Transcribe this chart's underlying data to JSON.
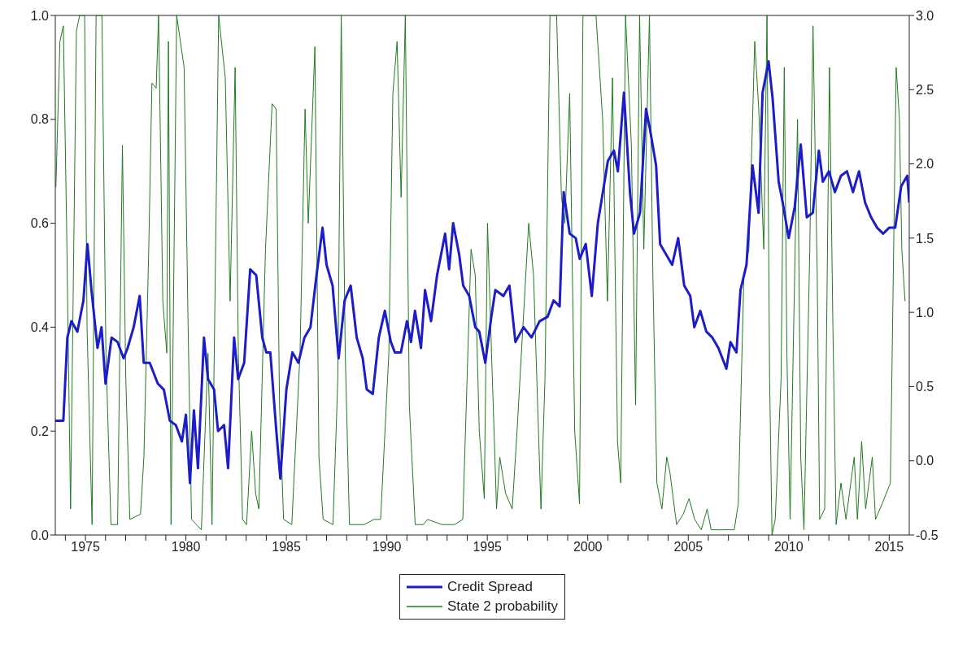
{
  "chart_data": {
    "type": "line",
    "xlim": [
      1973.5,
      2016.0
    ],
    "xticks": [
      {
        "value": 1974,
        "label": null
      },
      1975,
      {
        "value": 1976,
        "label": null
      },
      {
        "value": 1977,
        "label": null
      },
      {
        "value": 1978,
        "label": null
      },
      {
        "value": 1979,
        "label": null
      },
      1980,
      {
        "value": 1981,
        "label": null
      },
      {
        "value": 1982,
        "label": null
      },
      {
        "value": 1983,
        "label": null
      },
      {
        "value": 1984,
        "label": null
      },
      1985,
      {
        "value": 1986,
        "label": null
      },
      {
        "value": 1987,
        "label": null
      },
      {
        "value": 1988,
        "label": null
      },
      {
        "value": 1989,
        "label": null
      },
      1990,
      {
        "value": 1991,
        "label": null
      },
      {
        "value": 1992,
        "label": null
      },
      {
        "value": 1993,
        "label": null
      },
      {
        "value": 1994,
        "label": null
      },
      1995,
      {
        "value": 1996,
        "label": null
      },
      {
        "value": 1997,
        "label": null
      },
      {
        "value": 1998,
        "label": null
      },
      {
        "value": 1999,
        "label": null
      },
      2000,
      {
        "value": 2001,
        "label": null
      },
      {
        "value": 2002,
        "label": null
      },
      {
        "value": 2003,
        "label": null
      },
      {
        "value": 2004,
        "label": null
      },
      2005,
      {
        "value": 2006,
        "label": null
      },
      {
        "value": 2007,
        "label": null
      },
      {
        "value": 2008,
        "label": null
      },
      {
        "value": 2009,
        "label": null
      },
      2010,
      {
        "value": 2011,
        "label": null
      },
      {
        "value": 2012,
        "label": null
      },
      {
        "value": 2013,
        "label": null
      },
      {
        "value": 2014,
        "label": null
      },
      2015
    ],
    "ylim": [
      0,
      1
    ],
    "yticks": [
      {
        "value": 0,
        "label": "0.0"
      },
      {
        "value": 0.2,
        "label": "0.2"
      },
      {
        "value": 0.4,
        "label": "0.4"
      },
      {
        "value": 0.6,
        "label": "0.6"
      },
      {
        "value": 0.8,
        "label": "0.8"
      },
      {
        "value": 1,
        "label": "1.0"
      }
    ],
    "y2lim": [
      -0.5,
      3.0
    ],
    "y2ticks": [
      {
        "value": -0.5,
        "label": "-0.5"
      },
      {
        "value": 0,
        "label": "0.0"
      },
      {
        "value": 0.5,
        "label": "0.5"
      },
      {
        "value": 1,
        "label": "1.0"
      },
      {
        "value": 1.5,
        "label": "1.5"
      },
      {
        "value": 2,
        "label": "2.0"
      },
      {
        "value": 2.5,
        "label": "2.5"
      },
      {
        "value": 3,
        "label": "3.0"
      }
    ],
    "legend": "bottom",
    "marker": "none",
    "series": [
      {
        "name": "Credit Spread",
        "color": "#1c1cc8",
        "axis": "y2",
        "x": [
          1973.5,
          1973.9,
          1974.1,
          1974.3,
          1974.6,
          1974.9,
          1975.1,
          1975.3,
          1975.6,
          1975.8,
          1976.0,
          1976.3,
          1976.6,
          1976.9,
          1977.1,
          1977.4,
          1977.7,
          1977.9,
          1978.2,
          1978.6,
          1978.9,
          1979.2,
          1979.5,
          1979.8,
          1980.0,
          1980.2,
          1980.4,
          1980.6,
          1980.9,
          1981.1,
          1981.4,
          1981.6,
          1981.9,
          1982.1,
          1982.4,
          1982.6,
          1982.9,
          1983.2,
          1983.5,
          1983.8,
          1984.0,
          1984.2,
          1984.5,
          1984.7,
          1985.0,
          1985.3,
          1985.6,
          1985.9,
          1986.2,
          1986.5,
          1986.8,
          1987.0,
          1987.3,
          1987.6,
          1987.9,
          1988.2,
          1988.5,
          1988.8,
          1989.0,
          1989.3,
          1989.6,
          1989.9,
          1990.2,
          1990.4,
          1990.7,
          1991.0,
          1991.2,
          1991.4,
          1991.7,
          1991.9,
          1992.2,
          1992.5,
          1992.9,
          1993.1,
          1993.3,
          1993.6,
          1993.8,
          1994.1,
          1994.4,
          1994.6,
          1994.9,
          1995.2,
          1995.4,
          1995.8,
          1996.1,
          1996.4,
          1996.8,
          1997.2,
          1997.6,
          1998.0,
          1998.3,
          1998.6,
          1998.8,
          1999.1,
          1999.4,
          1999.6,
          1999.9,
          2000.2,
          2000.5,
          2000.8,
          2001.0,
          2001.3,
          2001.5,
          2001.8,
          2002.1,
          2002.3,
          2002.6,
          2002.9,
          2003.1,
          2003.4,
          2003.6,
          2003.9,
          2004.2,
          2004.5,
          2004.8,
          2005.1,
          2005.3,
          2005.6,
          2005.9,
          2006.2,
          2006.5,
          2006.9,
          2007.1,
          2007.4,
          2007.6,
          2007.9,
          2008.2,
          2008.5,
          2008.7,
          2009.0,
          2009.2,
          2009.5,
          2009.7,
          2010.0,
          2010.3,
          2010.6,
          2010.9,
          2011.2,
          2011.5,
          2011.7,
          2012.0,
          2012.3,
          2012.6,
          2012.9,
          2013.2,
          2013.5,
          2013.8,
          2014.1,
          2014.4,
          2014.7,
          2015.0,
          2015.3,
          2015.6,
          2015.9,
          2016.0
        ],
        "values": [
          0.27,
          0.27,
          0.83,
          0.94,
          0.87,
          1.08,
          1.46,
          1.15,
          0.76,
          0.9,
          0.52,
          0.83,
          0.8,
          0.69,
          0.76,
          0.9,
          1.11,
          0.66,
          0.66,
          0.52,
          0.48,
          0.27,
          0.24,
          0.13,
          0.31,
          -0.15,
          0.34,
          -0.05,
          0.83,
          0.55,
          0.48,
          0.2,
          0.24,
          -0.05,
          0.83,
          0.55,
          0.66,
          1.29,
          1.25,
          0.83,
          0.73,
          0.73,
          0.2,
          -0.12,
          0.48,
          0.73,
          0.66,
          0.83,
          0.9,
          1.25,
          1.57,
          1.32,
          1.18,
          0.69,
          1.08,
          1.18,
          0.83,
          0.69,
          0.48,
          0.45,
          0.83,
          1.01,
          0.8,
          0.73,
          0.73,
          0.94,
          0.8,
          1.01,
          0.76,
          1.15,
          0.94,
          1.25,
          1.53,
          1.29,
          1.6,
          1.39,
          1.18,
          1.11,
          0.9,
          0.87,
          0.66,
          0.97,
          1.15,
          1.11,
          1.18,
          0.8,
          0.9,
          0.83,
          0.94,
          0.97,
          1.08,
          1.04,
          1.81,
          1.53,
          1.5,
          1.36,
          1.46,
          1.11,
          1.6,
          1.85,
          2.02,
          2.09,
          1.95,
          2.48,
          1.81,
          1.53,
          1.67,
          2.37,
          2.23,
          1.99,
          1.46,
          1.39,
          1.32,
          1.5,
          1.18,
          1.11,
          0.9,
          1.01,
          0.87,
          0.83,
          0.76,
          0.62,
          0.8,
          0.73,
          1.15,
          1.32,
          1.99,
          1.67,
          2.48,
          2.69,
          2.44,
          1.88,
          1.74,
          1.5,
          1.71,
          2.13,
          1.64,
          1.67,
          2.09,
          1.88,
          1.95,
          1.81,
          1.92,
          1.95,
          1.81,
          1.95,
          1.74,
          1.64,
          1.57,
          1.53,
          1.57,
          1.57,
          1.85,
          1.92,
          1.74
        ]
      },
      {
        "name": "State 2 probability",
        "color": "#1e7b1e",
        "x": [
          1973.53,
          1973.73,
          1973.9,
          1974.06,
          1974.26,
          1974.55,
          1974.71,
          1974.96,
          1975.08,
          1975.33,
          1975.53,
          1975.82,
          1976.02,
          1976.27,
          1976.6,
          1976.84,
          1977.01,
          1977.21,
          1977.74,
          1977.91,
          1978.15,
          1978.31,
          1978.52,
          1978.64,
          1978.85,
          1979.05,
          1979.13,
          1979.26,
          1979.54,
          1979.91,
          1980.11,
          1980.28,
          1980.77,
          1981.1,
          1981.3,
          1981.63,
          1981.96,
          1982.2,
          1982.45,
          1982.61,
          1982.82,
          1983.02,
          1983.27,
          1983.47,
          1983.63,
          1983.96,
          1984.29,
          1984.49,
          1984.66,
          1984.86,
          1985.27,
          1985.68,
          1985.93,
          1986.09,
          1986.42,
          1986.62,
          1986.83,
          1987.32,
          1987.56,
          1987.73,
          1987.93,
          1988.14,
          1988.87,
          1989.36,
          1989.69,
          1990.1,
          1990.3,
          1990.51,
          1990.71,
          1990.92,
          1991.12,
          1991.41,
          1991.82,
          1992.02,
          1992.76,
          1993.37,
          1993.78,
          1994.19,
          1994.4,
          1994.6,
          1994.85,
          1995.01,
          1995.21,
          1995.46,
          1995.62,
          1995.91,
          1996.24,
          1996.48,
          1997.06,
          1997.3,
          1997.67,
          1997.87,
          1998.12,
          1998.45,
          1998.69,
          1998.86,
          1999.1,
          1999.35,
          1999.59,
          1999.76,
          2000.0,
          2000.41,
          2000.74,
          2000.98,
          2001.23,
          2001.48,
          2001.64,
          2001.88,
          2002.17,
          2002.38,
          2002.58,
          2002.79,
          2003.07,
          2003.24,
          2003.44,
          2003.69,
          2003.93,
          2004.09,
          2004.42,
          2004.75,
          2005.04,
          2005.32,
          2005.65,
          2005.94,
          2006.14,
          2006.47,
          2006.8,
          2007.29,
          2007.49,
          2007.77,
          2008.02,
          2008.31,
          2008.51,
          2008.76,
          2008.92,
          2009.05,
          2009.17,
          2009.33,
          2009.62,
          2009.78,
          2009.91,
          2010.07,
          2010.44,
          2010.6,
          2010.76,
          2011.05,
          2011.21,
          2011.42,
          2011.54,
          2011.79,
          2012.03,
          2012.2,
          2012.36,
          2012.6,
          2012.85,
          2013.26,
          2013.42,
          2013.63,
          2013.83,
          2014.16,
          2014.32,
          2014.65,
          2015.06,
          2015.35,
          2015.51,
          2015.63,
          2015.79
        ],
        "values": [
          0.67,
          0.95,
          0.98,
          0.6,
          0.05,
          0.97,
          1.0,
          1.0,
          0.4,
          0.02,
          1.0,
          1.0,
          0.35,
          0.02,
          0.02,
          0.75,
          0.3,
          0.03,
          0.04,
          0.15,
          0.55,
          0.87,
          0.86,
          1.0,
          0.45,
          0.35,
          0.95,
          0.02,
          1.0,
          0.9,
          0.4,
          0.03,
          0.01,
          0.35,
          0.02,
          1.0,
          0.88,
          0.45,
          0.9,
          0.35,
          0.03,
          0.02,
          0.2,
          0.08,
          0.05,
          0.55,
          0.83,
          0.82,
          0.25,
          0.03,
          0.02,
          0.35,
          0.82,
          0.6,
          0.94,
          0.15,
          0.03,
          0.02,
          0.3,
          1.0,
          0.35,
          0.02,
          0.02,
          0.03,
          0.03,
          0.35,
          0.85,
          0.95,
          0.65,
          1.0,
          0.25,
          0.02,
          0.02,
          0.03,
          0.02,
          0.02,
          0.03,
          0.55,
          0.5,
          0.2,
          0.07,
          0.6,
          0.35,
          0.05,
          0.15,
          0.08,
          0.05,
          0.2,
          0.6,
          0.5,
          0.05,
          0.3,
          1.0,
          1.0,
          0.65,
          0.6,
          0.85,
          0.2,
          0.06,
          1.0,
          1.0,
          1.0,
          0.8,
          0.45,
          0.88,
          0.18,
          0.1,
          1.0,
          0.75,
          0.25,
          1.0,
          0.55,
          1.0,
          0.5,
          0.1,
          0.05,
          0.15,
          0.12,
          0.02,
          0.04,
          0.07,
          0.03,
          0.01,
          0.05,
          0.01,
          0.01,
          0.01,
          0.01,
          0.06,
          0.5,
          0.55,
          0.95,
          0.82,
          0.55,
          1.0,
          0.3,
          0.0,
          0.03,
          0.3,
          0.9,
          0.35,
          0.03,
          0.8,
          0.15,
          0.01,
          0.55,
          0.98,
          0.5,
          0.03,
          0.05,
          0.9,
          0.4,
          0.02,
          0.1,
          0.03,
          0.15,
          0.03,
          0.18,
          0.05,
          0.15,
          0.03,
          0.06,
          0.1,
          0.9,
          0.8,
          0.55,
          0.45
        ]
      }
    ]
  }
}
